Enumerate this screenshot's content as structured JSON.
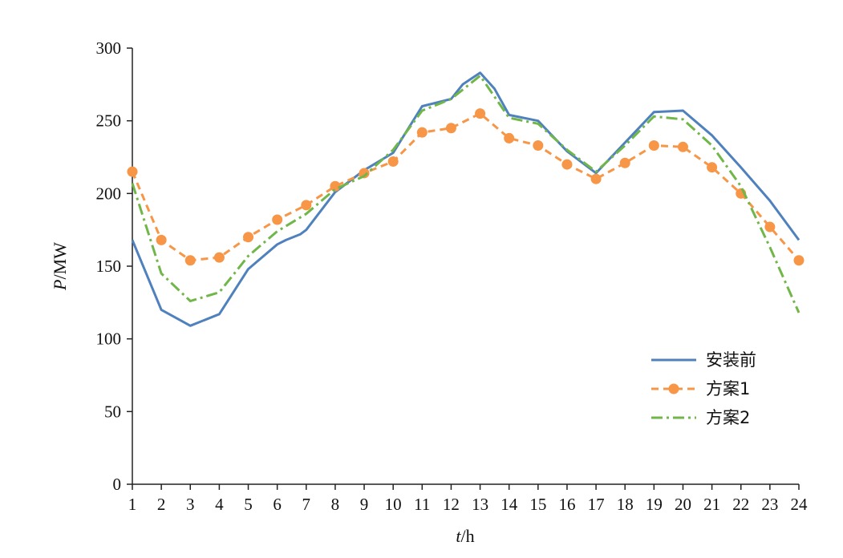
{
  "chart_data": {
    "type": "line",
    "xlabel": {
      "var": "t",
      "unit": "/h"
    },
    "ylabel": {
      "var": "P",
      "unit": "/MW"
    },
    "x": [
      1,
      2,
      3,
      4,
      5,
      6,
      7,
      8,
      9,
      10,
      11,
      12,
      13,
      14,
      15,
      16,
      17,
      18,
      19,
      20,
      21,
      22,
      23,
      24
    ],
    "xticks": [
      "1",
      "2",
      "3",
      "4",
      "5",
      "6",
      "7",
      "8",
      "9",
      "10",
      "11",
      "12",
      "13",
      "14",
      "15",
      "16",
      "17",
      "18",
      "19",
      "20",
      "21",
      "22",
      "23",
      "24"
    ],
    "yticks": [
      "0",
      "50",
      "100",
      "150",
      "200",
      "250",
      "300"
    ],
    "ylim": [
      0,
      300
    ],
    "xlim": [
      1,
      24
    ],
    "grid": false,
    "legend_position": "right",
    "series": [
      {
        "name": "安装前",
        "color": "#4f81bd",
        "style": "solid",
        "marker": "none",
        "x": [
          1,
          2,
          3,
          4,
          5,
          6,
          6.3,
          6.8,
          7,
          8,
          9,
          10,
          11,
          12,
          12.4,
          13,
          13.5,
          14,
          15,
          16,
          17,
          18,
          19,
          20,
          21,
          22,
          23,
          24
        ],
        "values": [
          168,
          120,
          109,
          117,
          148,
          165,
          168,
          172,
          175,
          201,
          216,
          228,
          260,
          265,
          275,
          283,
          272,
          254,
          250,
          229,
          214,
          235,
          256,
          257,
          240,
          218,
          195,
          168
        ]
      },
      {
        "name": "方案1",
        "color": "#f79646",
        "style": "dashed",
        "marker": "circle",
        "x": [
          1,
          2,
          3,
          4,
          5,
          6,
          7,
          8,
          9,
          10,
          11,
          12,
          13,
          14,
          15,
          16,
          17,
          18,
          19,
          20,
          21,
          22,
          23,
          24
        ],
        "values": [
          215,
          168,
          154,
          156,
          170,
          182,
          192,
          205,
          214,
          222,
          242,
          245,
          255,
          238,
          233,
          220,
          210,
          221,
          233,
          232,
          218,
          200,
          177,
          154
        ]
      },
      {
        "name": "方案2",
        "color": "#70b648",
        "style": "dashdot",
        "marker": "none",
        "x": [
          1,
          2,
          3,
          4,
          5,
          6,
          7,
          8,
          9,
          10,
          11,
          12,
          13,
          14,
          15,
          16,
          17,
          18,
          19,
          20,
          21,
          22,
          23,
          24
        ],
        "values": [
          207,
          145,
          126,
          132,
          157,
          174,
          186,
          203,
          212,
          230,
          257,
          265,
          281,
          252,
          248,
          230,
          215,
          233,
          253,
          251,
          233,
          205,
          163,
          118
        ]
      }
    ]
  }
}
